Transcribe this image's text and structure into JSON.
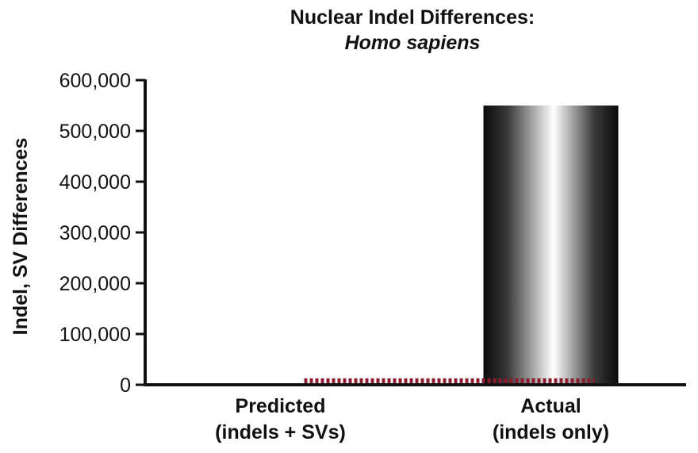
{
  "chart_data": {
    "type": "bar",
    "title": "Nuclear Indel Differences:",
    "subtitle": "Homo sapiens",
    "ylabel": "Indel, SV Differences",
    "xlabel": "",
    "ylim": [
      0,
      600000
    ],
    "yticks": [
      "0",
      "100,000",
      "200,000",
      "300,000",
      "400,000",
      "500,000",
      "600,000"
    ],
    "ytick_values": [
      0,
      100000,
      200000,
      300000,
      400000,
      500000,
      600000
    ],
    "categories": [
      {
        "line1": "Predicted",
        "line2": "(indels + SVs)"
      },
      {
        "line1": "Actual",
        "line2": "(indels only)"
      }
    ],
    "values": [
      0,
      550000
    ],
    "reference_line": {
      "value": 8000,
      "color": "#8b1a2b",
      "style": "dotted"
    },
    "bar_style": "black-white-black gradient",
    "grid": false
  }
}
